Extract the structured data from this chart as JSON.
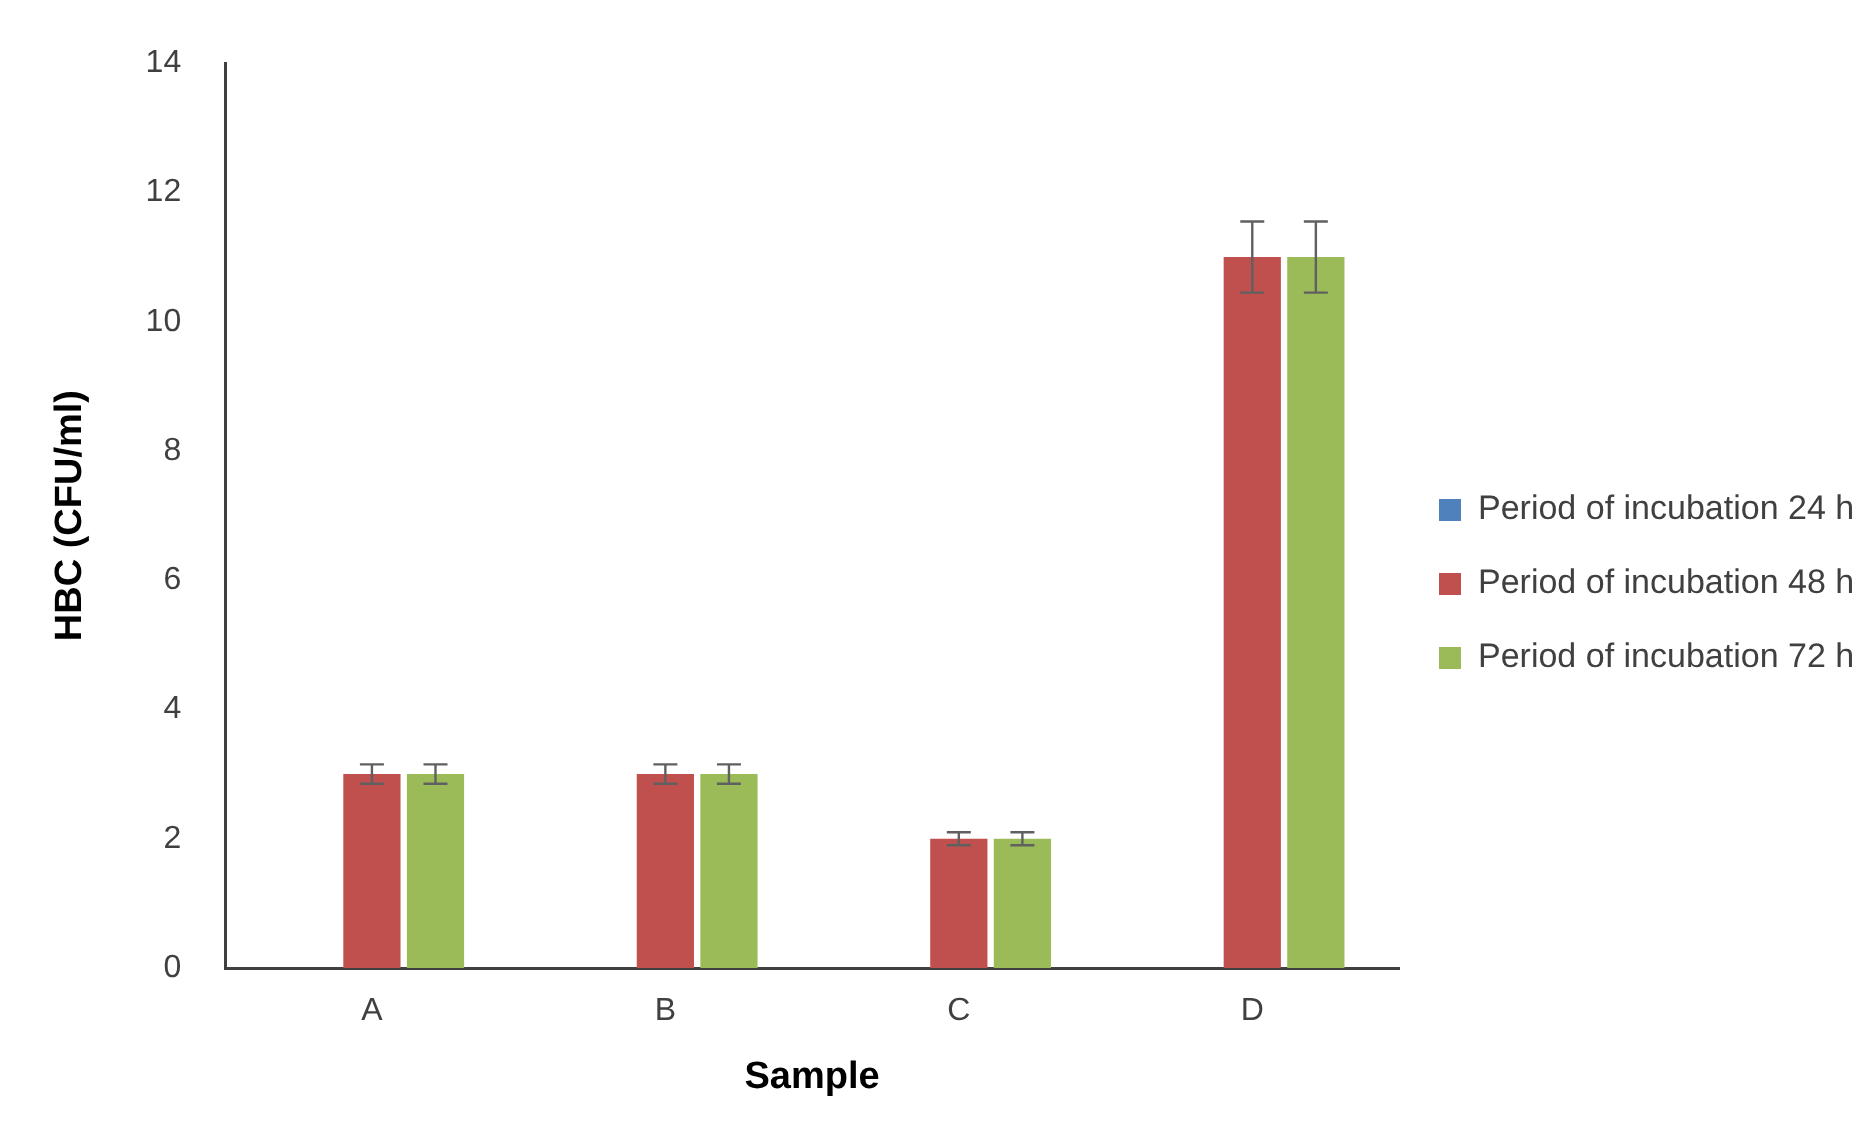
{
  "chart_data": {
    "type": "bar",
    "xlabel": "Sample",
    "ylabel": "HBC (CFU/ml)",
    "categories": [
      "A",
      "B",
      "C",
      "D"
    ],
    "series": [
      {
        "name": "Period of incubation 24 h",
        "color": "#4f81bd",
        "values": [
          0,
          0,
          0,
          0
        ]
      },
      {
        "name": "Period of incubation 48 h",
        "color": "#c0504d",
        "values": [
          3,
          3,
          2,
          11
        ],
        "errors": [
          0.15,
          0.15,
          0.1,
          0.55
        ]
      },
      {
        "name": "Period of incubation 72 h",
        "color": "#9bbb59",
        "values": [
          3,
          3,
          2,
          11
        ],
        "errors": [
          0.15,
          0.15,
          0.1,
          0.55
        ]
      }
    ],
    "ylim": [
      0,
      14
    ],
    "yticks": [
      0,
      2,
      4,
      6,
      8,
      10,
      12,
      14
    ],
    "grid": false,
    "legend": "right"
  }
}
